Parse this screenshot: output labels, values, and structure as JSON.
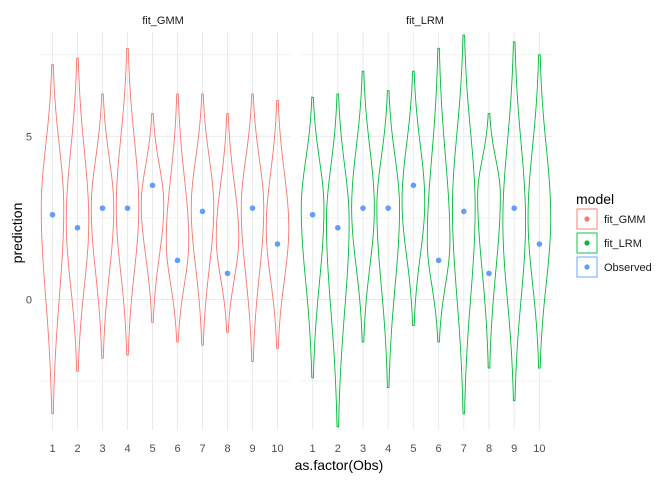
{
  "chart_data": {
    "type": "violin",
    "facets": [
      "fit_GMM",
      "fit_LRM"
    ],
    "xlabel": "as.factor(Obs)",
    "ylabel": "prediction",
    "categories": [
      "1",
      "2",
      "3",
      "4",
      "5",
      "6",
      "7",
      "8",
      "9",
      "10"
    ],
    "yticks": [
      "0",
      "5"
    ],
    "ytick_values": [
      0,
      5
    ],
    "ylim": [
      -4.0,
      8.2
    ],
    "grid": true,
    "legend": {
      "title": "model",
      "placement": "right",
      "entries": [
        "fit_GMM",
        "fit_LRM",
        "Observed"
      ]
    },
    "colors": {
      "fit_GMM": "#F8766D",
      "fit_LRM": "#00BA38",
      "Observed": "#619CFF"
    },
    "observed": [
      2.6,
      2.2,
      2.8,
      2.8,
      3.5,
      1.2,
      2.7,
      0.8,
      2.8,
      1.7
    ],
    "series": [
      {
        "name": "fit_GMM",
        "violins": [
          {
            "min": -3.5,
            "max": 7.2,
            "mode": 2.8
          },
          {
            "min": -2.2,
            "max": 7.4,
            "mode": 2.4
          },
          {
            "min": -1.8,
            "max": 6.3,
            "mode": 2.8
          },
          {
            "min": -1.7,
            "max": 7.7,
            "mode": 2.8
          },
          {
            "min": -0.7,
            "max": 5.7,
            "mode": 2.9
          },
          {
            "min": -1.3,
            "max": 6.3,
            "mode": 1.8
          },
          {
            "min": -1.4,
            "max": 6.3,
            "mode": 2.8
          },
          {
            "min": -1.0,
            "max": 5.7,
            "mode": 1.9
          },
          {
            "min": -1.9,
            "max": 6.3,
            "mode": 2.8
          },
          {
            "min": -1.5,
            "max": 6.1,
            "mode": 2.2
          }
        ]
      },
      {
        "name": "fit_LRM",
        "violins": [
          {
            "min": -2.4,
            "max": 6.2,
            "mode": 2.8
          },
          {
            "min": -3.9,
            "max": 6.3,
            "mode": 2.4
          },
          {
            "min": -1.3,
            "max": 7.0,
            "mode": 2.8
          },
          {
            "min": -2.7,
            "max": 6.4,
            "mode": 2.8
          },
          {
            "min": -0.8,
            "max": 7.0,
            "mode": 3.0
          },
          {
            "min": -1.3,
            "max": 7.7,
            "mode": 1.8
          },
          {
            "min": -3.5,
            "max": 8.1,
            "mode": 2.8
          },
          {
            "min": -2.1,
            "max": 5.7,
            "mode": 3.2
          },
          {
            "min": -3.1,
            "max": 7.9,
            "mode": 2.4
          },
          {
            "min": -2.1,
            "max": 7.5,
            "mode": 2.5
          }
        ]
      }
    ]
  }
}
